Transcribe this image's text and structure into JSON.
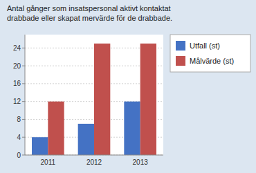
{
  "chart_data": {
    "type": "bar",
    "title": "Antal gånger som insatspersonal aktivt kontaktat",
    "subtitle": "drabbade eller skapat mervärde för de drabbade.",
    "categories": [
      "2011",
      "2012",
      "2013"
    ],
    "series": [
      {
        "name": "Utfall (st)",
        "color": "#4472c4",
        "values": [
          4,
          7,
          12
        ]
      },
      {
        "name": "Målvärde (st)",
        "color": "#c0504d",
        "values": [
          12,
          25,
          25
        ]
      }
    ],
    "ylim": [
      0,
      27
    ],
    "yticks": [
      0,
      4,
      8,
      12,
      16,
      20,
      24
    ],
    "grid": true,
    "legend": "right"
  }
}
